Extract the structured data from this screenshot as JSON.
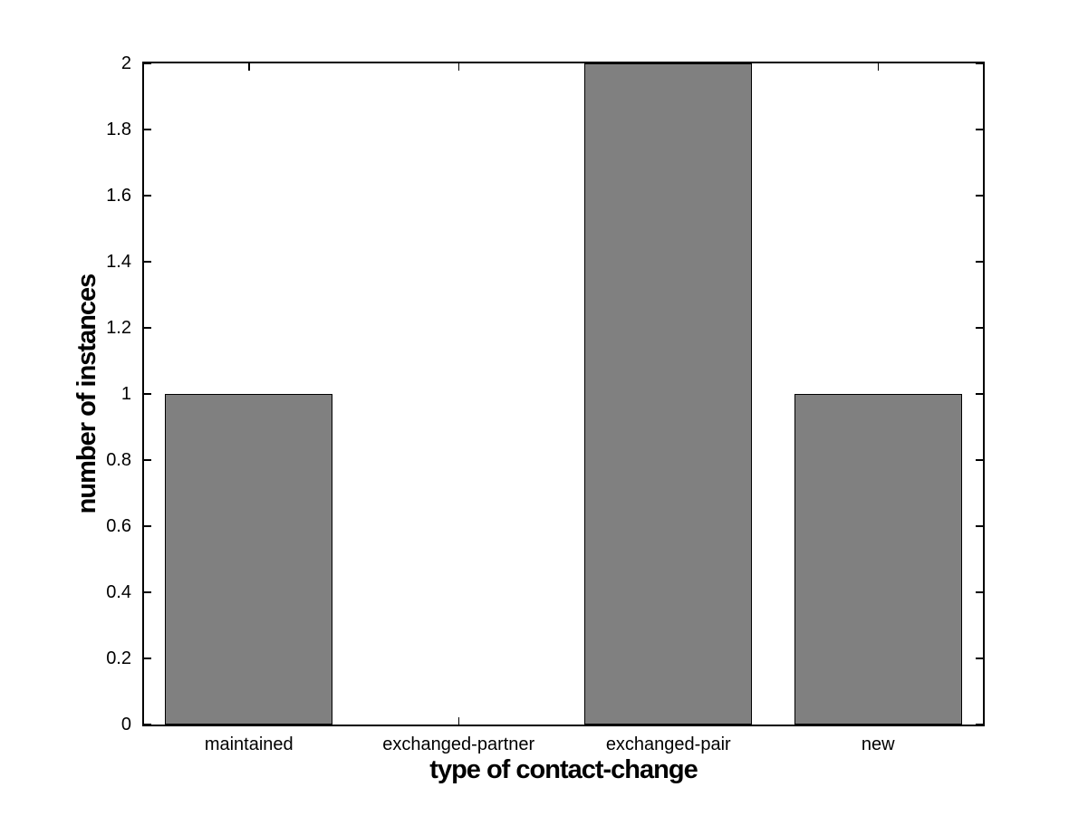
{
  "chart_data": {
    "type": "bar",
    "title": "",
    "categories": [
      "maintained",
      "exchanged-partner",
      "exchanged-pair",
      "new"
    ],
    "values": [
      1,
      0,
      2,
      1
    ],
    "xlabel": "type of contact-change",
    "ylabel": "number of instances",
    "ylim": [
      0,
      2
    ],
    "yticks": [
      0,
      0.2,
      0.4,
      0.6,
      0.8,
      1,
      1.2,
      1.4,
      1.6,
      1.8,
      2
    ],
    "ytick_labels": [
      "0",
      "0.2",
      "0.4",
      "0.6",
      "0.8",
      "1",
      "1.2",
      "1.4",
      "1.6",
      "1.8",
      "2"
    ],
    "bar_width_fraction": 0.8,
    "grid": false,
    "legend": "none",
    "bar_color": "#808080",
    "bar_edge_color": "#000000",
    "axis_color": "#000000",
    "background_color": "#ffffff"
  }
}
